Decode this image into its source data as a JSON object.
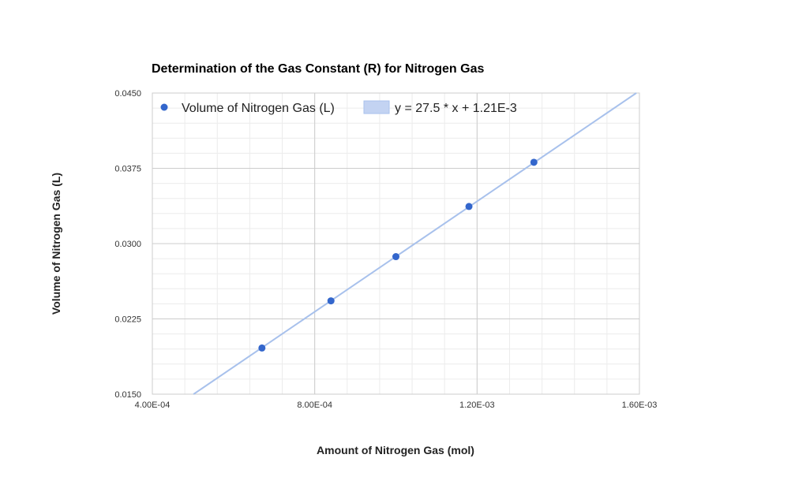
{
  "chart_data": {
    "type": "scatter",
    "title": "Determination of the Gas Constant (R) for Nitrogen Gas",
    "xlabel": "Amount of Nitrogen Gas (mol)",
    "ylabel": "Volume of Nitrogen Gas (L)",
    "xlim": [
      0.0004,
      0.0016
    ],
    "ylim": [
      0.015,
      0.045
    ],
    "x_ticks": [
      0.0004,
      0.0008,
      0.0012,
      0.0016
    ],
    "x_tick_labels": [
      "4.00E-04",
      "8.00E-04",
      "1.20E-03",
      "1.60E-03"
    ],
    "y_ticks": [
      0.015,
      0.0225,
      0.03,
      0.0375,
      0.045
    ],
    "y_tick_labels": [
      "0.0150",
      "0.0225",
      "0.0300",
      "0.0375",
      "0.0450"
    ],
    "grid": true,
    "legend_position": "top-left",
    "series": [
      {
        "name": "Volume of Nitrogen Gas (L)",
        "color": "#3366cc",
        "points": [
          {
            "x": 0.00067,
            "y": 0.0196
          },
          {
            "x": 0.00084,
            "y": 0.0243
          },
          {
            "x": 0.001,
            "y": 0.0287
          },
          {
            "x": 0.00118,
            "y": 0.0337
          },
          {
            "x": 0.00134,
            "y": 0.0381
          }
        ]
      }
    ],
    "trendline": {
      "label": "y = 27.5 * x + 1.21E-3",
      "slope": 27.5,
      "intercept": 0.00121,
      "color": "#a8c1ec"
    }
  }
}
